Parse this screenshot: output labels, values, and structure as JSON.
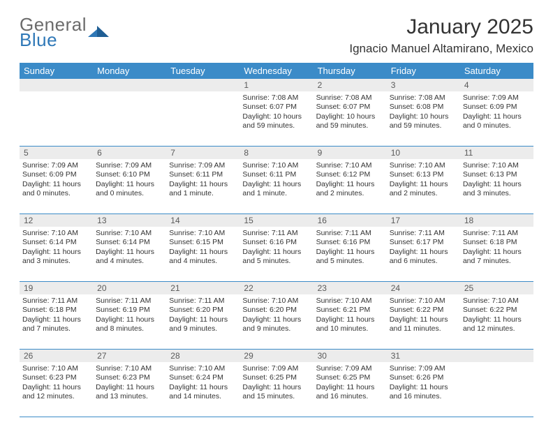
{
  "logo": {
    "word1": "General",
    "word2": "Blue"
  },
  "title": "January 2025",
  "location": "Ignacio Manuel Altamirano, Mexico",
  "colors": {
    "header_bg": "#3b8bc8",
    "header_text": "#ffffff",
    "numrow_bg": "#ececec",
    "rule": "#3b8bc8",
    "logo_gray": "#6b6b6b",
    "logo_blue": "#2f78b7"
  },
  "dow": [
    "Sunday",
    "Monday",
    "Tuesday",
    "Wednesday",
    "Thursday",
    "Friday",
    "Saturday"
  ],
  "weeks": [
    {
      "nums": [
        "",
        "",
        "",
        "1",
        "2",
        "3",
        "4"
      ],
      "cells": [
        null,
        null,
        null,
        {
          "sunrise": "Sunrise: 7:08 AM",
          "sunset": "Sunset: 6:07 PM",
          "daylight": "Daylight: 10 hours and 59 minutes."
        },
        {
          "sunrise": "Sunrise: 7:08 AM",
          "sunset": "Sunset: 6:07 PM",
          "daylight": "Daylight: 10 hours and 59 minutes."
        },
        {
          "sunrise": "Sunrise: 7:08 AM",
          "sunset": "Sunset: 6:08 PM",
          "daylight": "Daylight: 10 hours and 59 minutes."
        },
        {
          "sunrise": "Sunrise: 7:09 AM",
          "sunset": "Sunset: 6:09 PM",
          "daylight": "Daylight: 11 hours and 0 minutes."
        }
      ]
    },
    {
      "nums": [
        "5",
        "6",
        "7",
        "8",
        "9",
        "10",
        "11"
      ],
      "cells": [
        {
          "sunrise": "Sunrise: 7:09 AM",
          "sunset": "Sunset: 6:09 PM",
          "daylight": "Daylight: 11 hours and 0 minutes."
        },
        {
          "sunrise": "Sunrise: 7:09 AM",
          "sunset": "Sunset: 6:10 PM",
          "daylight": "Daylight: 11 hours and 0 minutes."
        },
        {
          "sunrise": "Sunrise: 7:09 AM",
          "sunset": "Sunset: 6:11 PM",
          "daylight": "Daylight: 11 hours and 1 minute."
        },
        {
          "sunrise": "Sunrise: 7:10 AM",
          "sunset": "Sunset: 6:11 PM",
          "daylight": "Daylight: 11 hours and 1 minute."
        },
        {
          "sunrise": "Sunrise: 7:10 AM",
          "sunset": "Sunset: 6:12 PM",
          "daylight": "Daylight: 11 hours and 2 minutes."
        },
        {
          "sunrise": "Sunrise: 7:10 AM",
          "sunset": "Sunset: 6:13 PM",
          "daylight": "Daylight: 11 hours and 2 minutes."
        },
        {
          "sunrise": "Sunrise: 7:10 AM",
          "sunset": "Sunset: 6:13 PM",
          "daylight": "Daylight: 11 hours and 3 minutes."
        }
      ]
    },
    {
      "nums": [
        "12",
        "13",
        "14",
        "15",
        "16",
        "17",
        "18"
      ],
      "cells": [
        {
          "sunrise": "Sunrise: 7:10 AM",
          "sunset": "Sunset: 6:14 PM",
          "daylight": "Daylight: 11 hours and 3 minutes."
        },
        {
          "sunrise": "Sunrise: 7:10 AM",
          "sunset": "Sunset: 6:14 PM",
          "daylight": "Daylight: 11 hours and 4 minutes."
        },
        {
          "sunrise": "Sunrise: 7:10 AM",
          "sunset": "Sunset: 6:15 PM",
          "daylight": "Daylight: 11 hours and 4 minutes."
        },
        {
          "sunrise": "Sunrise: 7:11 AM",
          "sunset": "Sunset: 6:16 PM",
          "daylight": "Daylight: 11 hours and 5 minutes."
        },
        {
          "sunrise": "Sunrise: 7:11 AM",
          "sunset": "Sunset: 6:16 PM",
          "daylight": "Daylight: 11 hours and 5 minutes."
        },
        {
          "sunrise": "Sunrise: 7:11 AM",
          "sunset": "Sunset: 6:17 PM",
          "daylight": "Daylight: 11 hours and 6 minutes."
        },
        {
          "sunrise": "Sunrise: 7:11 AM",
          "sunset": "Sunset: 6:18 PM",
          "daylight": "Daylight: 11 hours and 7 minutes."
        }
      ]
    },
    {
      "nums": [
        "19",
        "20",
        "21",
        "22",
        "23",
        "24",
        "25"
      ],
      "cells": [
        {
          "sunrise": "Sunrise: 7:11 AM",
          "sunset": "Sunset: 6:18 PM",
          "daylight": "Daylight: 11 hours and 7 minutes."
        },
        {
          "sunrise": "Sunrise: 7:11 AM",
          "sunset": "Sunset: 6:19 PM",
          "daylight": "Daylight: 11 hours and 8 minutes."
        },
        {
          "sunrise": "Sunrise: 7:11 AM",
          "sunset": "Sunset: 6:20 PM",
          "daylight": "Daylight: 11 hours and 9 minutes."
        },
        {
          "sunrise": "Sunrise: 7:10 AM",
          "sunset": "Sunset: 6:20 PM",
          "daylight": "Daylight: 11 hours and 9 minutes."
        },
        {
          "sunrise": "Sunrise: 7:10 AM",
          "sunset": "Sunset: 6:21 PM",
          "daylight": "Daylight: 11 hours and 10 minutes."
        },
        {
          "sunrise": "Sunrise: 7:10 AM",
          "sunset": "Sunset: 6:22 PM",
          "daylight": "Daylight: 11 hours and 11 minutes."
        },
        {
          "sunrise": "Sunrise: 7:10 AM",
          "sunset": "Sunset: 6:22 PM",
          "daylight": "Daylight: 11 hours and 12 minutes."
        }
      ]
    },
    {
      "nums": [
        "26",
        "27",
        "28",
        "29",
        "30",
        "31",
        ""
      ],
      "cells": [
        {
          "sunrise": "Sunrise: 7:10 AM",
          "sunset": "Sunset: 6:23 PM",
          "daylight": "Daylight: 11 hours and 12 minutes."
        },
        {
          "sunrise": "Sunrise: 7:10 AM",
          "sunset": "Sunset: 6:23 PM",
          "daylight": "Daylight: 11 hours and 13 minutes."
        },
        {
          "sunrise": "Sunrise: 7:10 AM",
          "sunset": "Sunset: 6:24 PM",
          "daylight": "Daylight: 11 hours and 14 minutes."
        },
        {
          "sunrise": "Sunrise: 7:09 AM",
          "sunset": "Sunset: 6:25 PM",
          "daylight": "Daylight: 11 hours and 15 minutes."
        },
        {
          "sunrise": "Sunrise: 7:09 AM",
          "sunset": "Sunset: 6:25 PM",
          "daylight": "Daylight: 11 hours and 16 minutes."
        },
        {
          "sunrise": "Sunrise: 7:09 AM",
          "sunset": "Sunset: 6:26 PM",
          "daylight": "Daylight: 11 hours and 16 minutes."
        },
        null
      ]
    }
  ]
}
